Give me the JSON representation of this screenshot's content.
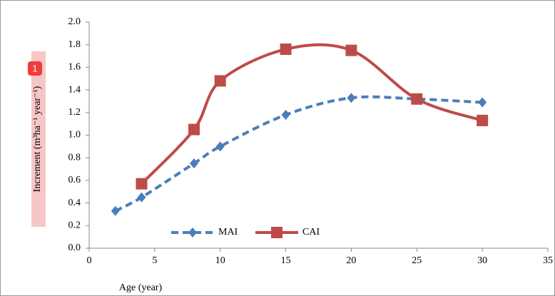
{
  "chart_data": {
    "type": "line",
    "x_label": "Age (year)",
    "y_label": "Increment  (m³ha⁻¹ year⁻¹)",
    "xlim": [
      0,
      35
    ],
    "xticks": [
      0,
      5,
      10,
      15,
      20,
      25,
      30,
      35
    ],
    "ylim": [
      0,
      2.0
    ],
    "yticks": [
      {
        "value": 0,
        "label": "0.0"
      },
      {
        "value": 0.2,
        "label": "0.2"
      },
      {
        "value": 0.4,
        "label": "0.4"
      },
      {
        "value": 0.6,
        "label": "0.6"
      },
      {
        "value": 0.8,
        "label": "0.8"
      },
      {
        "value": 1.0,
        "label": "1.0"
      },
      {
        "value": 1.2,
        "label": "1.2"
      },
      {
        "value": 1.4,
        "label": "1.4"
      },
      {
        "value": 1.6,
        "label": "1.6"
      },
      {
        "value": 1.8,
        "label": "1.8"
      },
      {
        "value": 2.0,
        "label": "2.0"
      }
    ],
    "legend": "bottom",
    "series": [
      {
        "name": "MAI",
        "color": "#4a7ebb",
        "dashed": true,
        "marker": "diamond",
        "x": [
          2,
          4,
          8,
          10,
          15,
          20,
          25,
          30
        ],
        "values": [
          0.33,
          0.45,
          0.75,
          0.9,
          1.18,
          1.33,
          1.32,
          1.29
        ]
      },
      {
        "name": "CAI",
        "color": "#be4b48",
        "dashed": false,
        "marker": "square",
        "x": [
          4,
          8,
          10,
          15,
          20,
          25,
          30
        ],
        "values": [
          0.57,
          1.05,
          1.48,
          1.76,
          1.75,
          1.32,
          1.13
        ]
      }
    ]
  },
  "ui": {
    "badge": "1"
  }
}
